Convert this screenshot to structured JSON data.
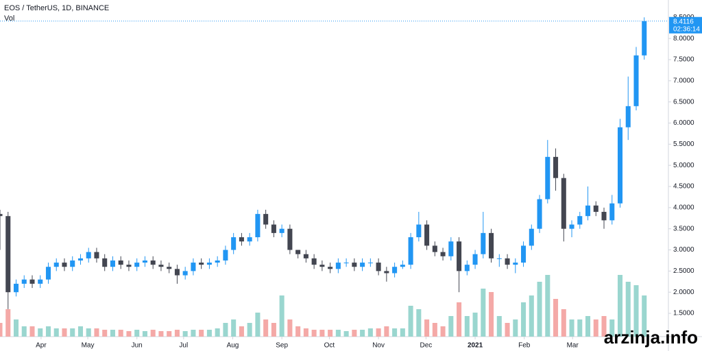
{
  "chart_data": {
    "type": "candlestick",
    "title": "EOS / TetherUS, 1D, BINANCE",
    "volume_label": "Vol",
    "watermark": "arzinja.info",
    "timer": "02:36:14",
    "last_price": 8.4116,
    "up_color": "#2196f3",
    "down_color": "#434651",
    "volume_up_color": "#9ad6cf",
    "volume_down_color": "#f4a9a7",
    "xlim": [
      0,
      83
    ],
    "xticks": [
      {
        "value": 5.1,
        "label": "Apr"
      },
      {
        "value": 10.9,
        "label": "May"
      },
      {
        "value": 17.0,
        "label": "Jun"
      },
      {
        "value": 22.8,
        "label": "Jul"
      },
      {
        "value": 28.9,
        "label": "Aug"
      },
      {
        "value": 35.0,
        "label": "Sep"
      },
      {
        "value": 40.9,
        "label": "Oct"
      },
      {
        "value": 47.0,
        "label": "Nov"
      },
      {
        "value": 52.9,
        "label": "Dec"
      },
      {
        "value": 59.0,
        "label": "2021"
      },
      {
        "value": 65.1,
        "label": "Feb"
      },
      {
        "value": 71.1,
        "label": "Mar"
      }
    ],
    "ylim": [
      0.95,
      8.91
    ],
    "yticks": [
      {
        "value": 1.5,
        "label": "1.5000"
      },
      {
        "value": 2,
        "label": "2.0000"
      },
      {
        "value": 2.5,
        "label": "2.5000"
      },
      {
        "value": 3,
        "label": "3.0000"
      },
      {
        "value": 3.5,
        "label": "3.5000"
      },
      {
        "value": 4,
        "label": "4.0000"
      },
      {
        "value": 4.5,
        "label": "4.5000"
      },
      {
        "value": 5,
        "label": "5.0000"
      },
      {
        "value": 5.5,
        "label": "5.5000"
      },
      {
        "value": 6,
        "label": "6.0000"
      },
      {
        "value": 6.5,
        "label": "6.5000"
      },
      {
        "value": 7,
        "label": "7.0000"
      },
      {
        "value": 7.5,
        "label": "7.5000"
      },
      {
        "value": 8,
        "label": "8.0000"
      },
      {
        "value": 8.5,
        "label": "8.5000"
      }
    ],
    "open": [
      3.85,
      3.8,
      2.0,
      2.2,
      2.3,
      2.2,
      2.3,
      2.6,
      2.7,
      2.6,
      2.75,
      2.8,
      2.95,
      2.8,
      2.6,
      2.75,
      2.65,
      2.6,
      2.7,
      2.75,
      2.65,
      2.6,
      2.55,
      2.4,
      2.5,
      2.7,
      2.65,
      2.7,
      2.75,
      3.0,
      3.3,
      3.2,
      3.3,
      3.85,
      3.6,
      3.4,
      3.5,
      3.0,
      2.9,
      2.8,
      2.65,
      2.6,
      2.55,
      2.7,
      2.7,
      2.6,
      2.7,
      2.7,
      2.5,
      2.45,
      2.6,
      2.65,
      3.3,
      3.6,
      3.1,
      2.95,
      2.85,
      3.2,
      2.5,
      2.65,
      2.9,
      3.4,
      2.8,
      2.8,
      2.65,
      2.7,
      3.1,
      3.5,
      4.2,
      5.2,
      4.7,
      3.5,
      3.6,
      3.8,
      4.05,
      3.9,
      3.7,
      4.1,
      5.9,
      6.4,
      7.6
    ],
    "high": [
      3.95,
      3.9,
      2.3,
      2.4,
      2.4,
      2.4,
      2.7,
      2.8,
      2.8,
      2.85,
      2.9,
      3.05,
      3.05,
      2.9,
      2.85,
      2.85,
      2.75,
      2.8,
      2.85,
      2.85,
      2.75,
      2.7,
      2.65,
      2.6,
      2.8,
      2.8,
      2.8,
      2.85,
      3.1,
      3.4,
      3.4,
      3.4,
      3.95,
      3.95,
      3.7,
      3.6,
      3.6,
      3.0,
      3.0,
      2.9,
      2.75,
      2.7,
      2.8,
      2.8,
      2.8,
      2.8,
      2.8,
      2.8,
      2.6,
      2.7,
      2.75,
      3.4,
      3.9,
      3.7,
      3.2,
      3.05,
      3.3,
      3.3,
      2.75,
      3.0,
      3.9,
      3.5,
      2.9,
      2.9,
      2.8,
      3.2,
      3.6,
      4.3,
      5.6,
      5.4,
      4.8,
      3.7,
      3.9,
      4.5,
      4.15,
      4.0,
      4.3,
      6.1,
      7.1,
      7.8,
      8.5
    ],
    "low": [
      3.0,
      1.6,
      1.9,
      2.1,
      2.1,
      2.1,
      2.2,
      2.5,
      2.5,
      2.5,
      2.65,
      2.7,
      2.7,
      2.5,
      2.5,
      2.55,
      2.5,
      2.5,
      2.6,
      2.55,
      2.5,
      2.45,
      2.2,
      2.3,
      2.4,
      2.55,
      2.55,
      2.6,
      2.65,
      2.9,
      3.1,
      3.1,
      3.2,
      3.5,
      3.3,
      3.3,
      2.9,
      2.8,
      2.7,
      2.55,
      2.5,
      2.45,
      2.45,
      2.6,
      2.5,
      2.5,
      2.6,
      2.4,
      2.25,
      2.35,
      2.55,
      2.55,
      3.2,
      3.0,
      2.85,
      2.75,
      2.75,
      2.0,
      2.4,
      2.55,
      2.8,
      2.7,
      2.6,
      2.55,
      2.45,
      2.6,
      3.0,
      3.4,
      4.1,
      4.4,
      3.2,
      3.3,
      3.5,
      3.7,
      3.8,
      3.5,
      3.6,
      4.0,
      5.6,
      6.3,
      7.5
    ],
    "close": [
      3.8,
      2.0,
      2.2,
      2.3,
      2.2,
      2.3,
      2.6,
      2.7,
      2.6,
      2.75,
      2.8,
      2.95,
      2.8,
      2.6,
      2.75,
      2.65,
      2.6,
      2.7,
      2.75,
      2.65,
      2.6,
      2.55,
      2.4,
      2.5,
      2.7,
      2.65,
      2.7,
      2.75,
      3.0,
      3.3,
      3.2,
      3.3,
      3.85,
      3.6,
      3.4,
      3.5,
      3.0,
      2.9,
      2.8,
      2.65,
      2.6,
      2.55,
      2.7,
      2.7,
      2.6,
      2.7,
      2.7,
      2.5,
      2.45,
      2.6,
      2.65,
      3.3,
      3.6,
      3.1,
      2.95,
      2.85,
      3.2,
      2.5,
      2.65,
      2.9,
      3.4,
      2.8,
      2.8,
      2.65,
      2.7,
      3.1,
      3.5,
      4.2,
      5.2,
      4.7,
      3.5,
      3.6,
      3.8,
      4.05,
      3.9,
      3.7,
      4.1,
      5.9,
      6.4,
      7.6,
      8.41
    ],
    "volume_ylim": [
      0,
      100
    ],
    "volume": [
      20,
      40,
      25,
      15,
      15,
      12,
      15,
      12,
      12,
      12,
      15,
      12,
      12,
      10,
      10,
      10,
      8,
      10,
      8,
      10,
      8,
      8,
      10,
      8,
      10,
      10,
      10,
      12,
      20,
      25,
      15,
      20,
      35,
      25,
      20,
      60,
      25,
      15,
      12,
      10,
      10,
      10,
      10,
      8,
      10,
      10,
      12,
      12,
      15,
      12,
      12,
      45,
      40,
      25,
      20,
      15,
      30,
      50,
      30,
      35,
      70,
      65,
      30,
      20,
      25,
      50,
      60,
      80,
      90,
      55,
      40,
      25,
      25,
      30,
      25,
      30,
      25,
      90,
      80,
      75,
      60
    ]
  }
}
